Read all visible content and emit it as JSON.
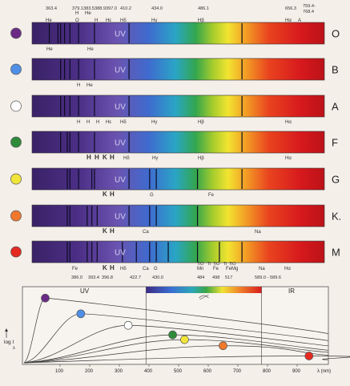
{
  "header": {
    "wavelengths": [
      "363.4",
      "379.1",
      "383.5",
      "388.9",
      "397.0",
      "410.2",
      "434.0",
      "486.1",
      "656.3",
      "759.4-",
      "768.4"
    ],
    "elements": [
      "He",
      "H",
      "O",
      "He",
      "H",
      "Hε",
      "Hδ",
      "Hγ",
      "Hβ",
      "Hα",
      "A"
    ]
  },
  "spectra": [
    {
      "class": "O",
      "star_color": "#6a2a86",
      "uv_label": "UV",
      "lines": [
        366,
        379,
        383,
        389,
        397,
        410,
        434,
        486,
        656
      ],
      "below": [
        "He",
        "He"
      ]
    },
    {
      "class": "B",
      "star_color": "#4f8fe6",
      "uv_label": "UV",
      "lines": [
        383,
        389,
        397,
        410,
        434,
        486,
        656
      ],
      "below": [
        "H",
        "He"
      ]
    },
    {
      "class": "A",
      "star_color": "#ffffff",
      "uv_label": "UV",
      "lines": [
        383,
        389,
        397,
        410,
        434,
        486,
        656
      ],
      "below": [
        "H",
        "H",
        "H",
        "Hε",
        "Hδ",
        "Hγ",
        "Hβ",
        "Hα"
      ]
    },
    {
      "class": "F",
      "star_color": "#2e8b3a",
      "uv_label": "UV",
      "lines": [
        383,
        393,
        397,
        410,
        434,
        486,
        656
      ],
      "below": [
        "H",
        "H",
        "K",
        "H",
        "Hδ",
        "Hγ",
        "Hβ",
        "Hα"
      ]
    },
    {
      "class": "G",
      "star_color": "#f2e53a",
      "uv_label": "UV",
      "lines": [
        393,
        397,
        410,
        430,
        434,
        486,
        517,
        527,
        589,
        656
      ],
      "below": [
        "K",
        "H",
        "G",
        "Fe"
      ]
    },
    {
      "class": "K.",
      "star_color": "#f0782c",
      "uv_label": "UV",
      "lines": [
        393,
        397,
        423,
        430,
        438,
        486,
        517,
        527,
        589
      ],
      "below": [
        "K",
        "H",
        "Ca",
        "Na"
      ]
    },
    {
      "class": "M",
      "star_color": "#e52a22",
      "uv_label": "UV",
      "lines": [
        393,
        397,
        423,
        430,
        438,
        476,
        497,
        517,
        527,
        545,
        589,
        622,
        656
      ],
      "below": [
        "Fe",
        "K",
        "H",
        "Hδ",
        "Ca",
        "G",
        "Mn",
        "Fe",
        "FeMg",
        "Na",
        "Hα"
      ]
    }
  ],
  "footer": {
    "top_labels": [
      "TiO",
      "Ti",
      "TiO",
      "Ti",
      "TiO"
    ],
    "values": [
      "386.0",
      "393.4",
      "396.8",
      "422.7",
      "430.0",
      "484",
      "498",
      "517",
      "589.0 - 589.6"
    ]
  },
  "graph": {
    "uv_label": "UV",
    "ir_label": "IR",
    "y_axis_label": "log I",
    "y_axis_sub": "λ",
    "x_unit": "λ (nm)",
    "x_ticks": [
      "100",
      "200",
      "300",
      "400",
      "500",
      "600",
      "700",
      "800",
      "900"
    ],
    "x_range": [
      0,
      1000
    ],
    "visible_range": [
      390,
      780
    ],
    "peaks": [
      {
        "class": "O",
        "wavelength_nm": 50,
        "level": 0.95
      },
      {
        "class": "B",
        "wavelength_nm": 170,
        "level": 0.72
      },
      {
        "class": "A",
        "wavelength_nm": 330,
        "level": 0.55
      },
      {
        "class": "F",
        "wavelength_nm": 480,
        "level": 0.41
      },
      {
        "class": "G",
        "wavelength_nm": 520,
        "level": 0.34
      },
      {
        "class": "K.",
        "wavelength_nm": 650,
        "level": 0.25
      },
      {
        "class": "M",
        "wavelength_nm": 940,
        "level": 0.1
      }
    ]
  }
}
